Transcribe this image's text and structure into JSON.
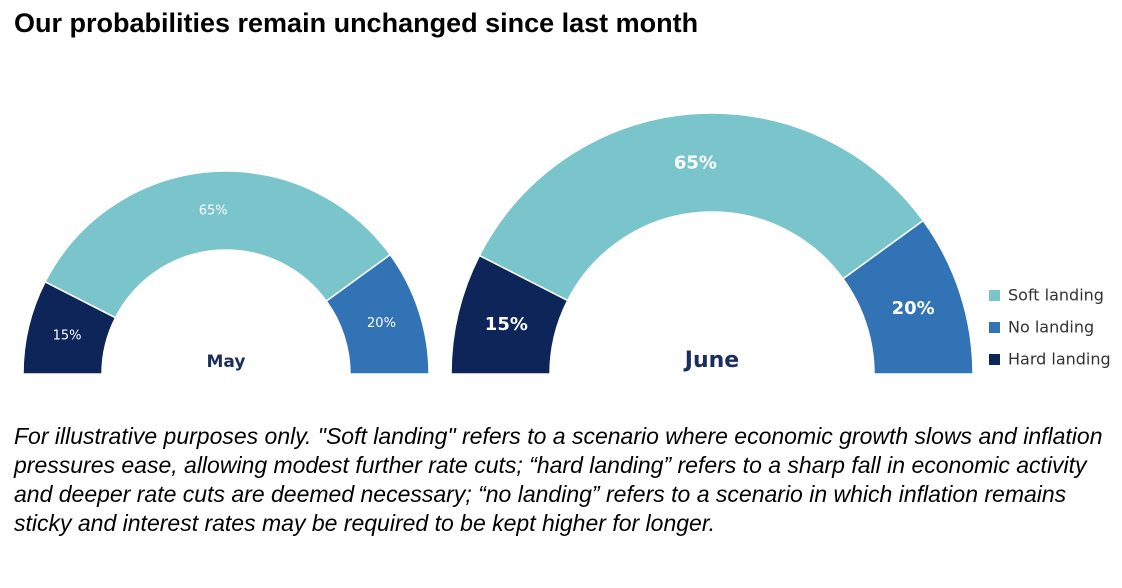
{
  "title": "Our probabilities remain unchanged since last month",
  "chart_data": {
    "type": "pie",
    "subtype": "half-donut",
    "charts": [
      {
        "label": "May",
        "slices": [
          {
            "name": "Hard landing",
            "value": 15,
            "label": "15%"
          },
          {
            "name": "Soft landing",
            "value": 65,
            "label": "65%"
          },
          {
            "name": "No landing",
            "value": 20,
            "label": "20%"
          }
        ]
      },
      {
        "label": "June",
        "slices": [
          {
            "name": "Hard landing",
            "value": 15,
            "label": "15%"
          },
          {
            "name": "Soft landing",
            "value": 65,
            "label": "65%"
          },
          {
            "name": "No landing",
            "value": 20,
            "label": "20%"
          }
        ]
      }
    ],
    "legend": {
      "position": "right",
      "entries": [
        {
          "name": "Soft landing",
          "color": "#79c5cb"
        },
        {
          "name": "No landing",
          "color": "#3173b4"
        },
        {
          "name": "Hard landing",
          "color": "#0d2559"
        }
      ]
    },
    "colors": {
      "Soft landing": "#79c5cb",
      "No landing": "#3173b4",
      "Hard landing": "#0d2559"
    }
  },
  "footnote": "For illustrative purposes only. \"Soft landing\" refers to a scenario where economic growth slows and inflation pressures ease, allowing modest further rate cuts; “hard landing” refers to a sharp fall in economic activity and deeper rate cuts are deemed necessary; “no landing” refers to a scenario in which inflation remains sticky and interest rates may be required to be kept higher for longer."
}
